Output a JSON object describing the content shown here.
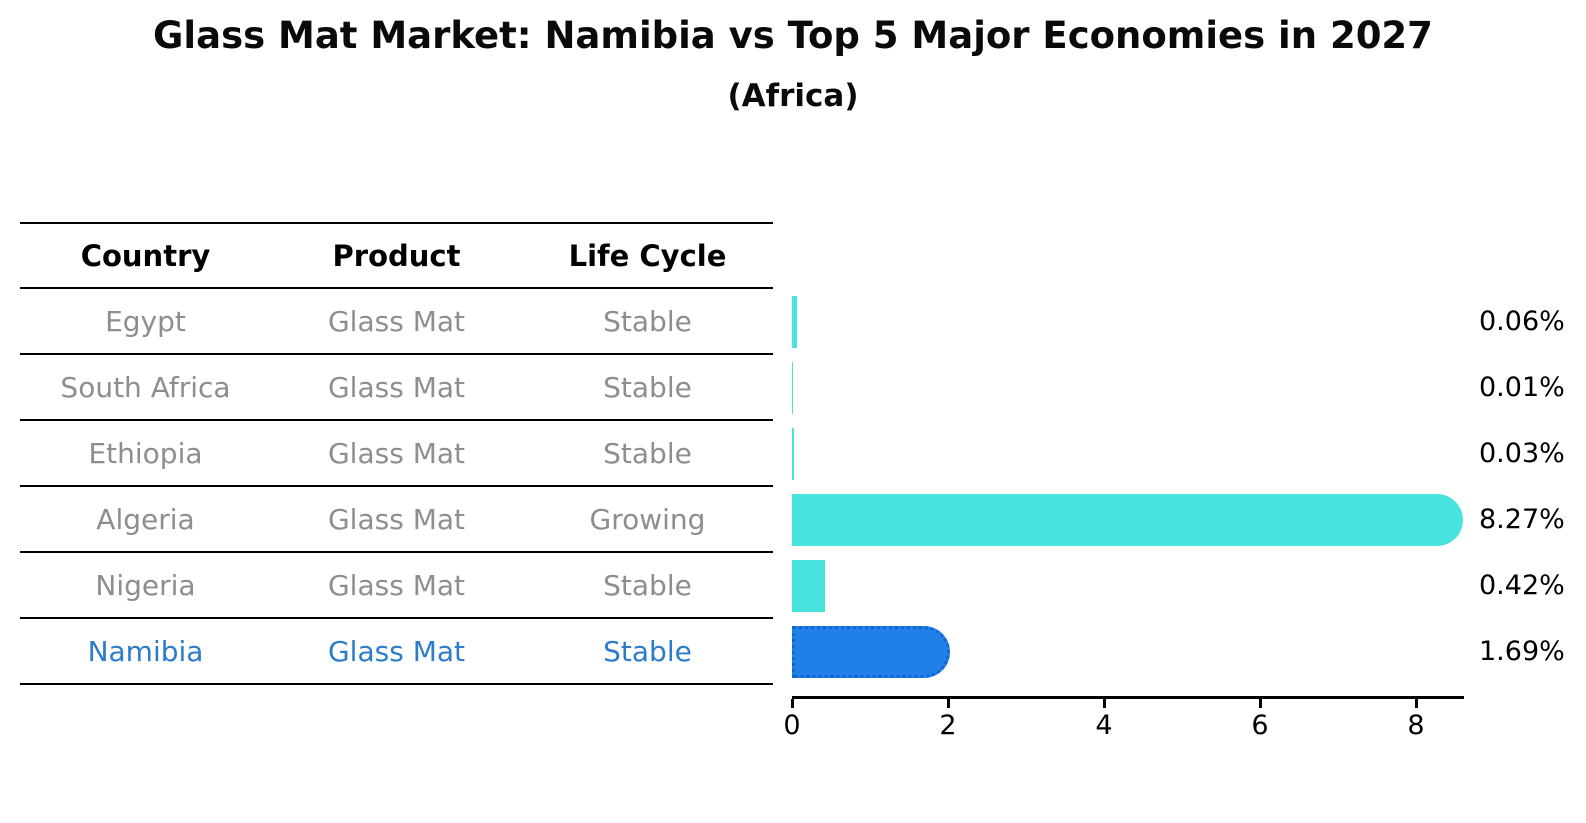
{
  "chart_data": {
    "type": "bar",
    "orientation": "horizontal",
    "title": "Glass Mat Market: Namibia vs Top 5 Major Economies in 2027",
    "subtitle": "(Africa)",
    "table_columns": [
      "Country",
      "Product",
      "Life Cycle"
    ],
    "rows": [
      {
        "country": "Egypt",
        "product": "Glass Mat",
        "life_cycle": "Stable",
        "value": 0.06,
        "value_label": "0.06%",
        "highlight": false
      },
      {
        "country": "South Africa",
        "product": "Glass Mat",
        "life_cycle": "Stable",
        "value": 0.01,
        "value_label": "0.01%",
        "highlight": false
      },
      {
        "country": "Ethiopia",
        "product": "Glass Mat",
        "life_cycle": "Stable",
        "value": 0.03,
        "value_label": "0.03%",
        "highlight": false
      },
      {
        "country": "Algeria",
        "product": "Glass Mat",
        "life_cycle": "Growing",
        "value": 8.27,
        "value_label": "8.27%",
        "highlight": false
      },
      {
        "country": "Nigeria",
        "product": "Glass Mat",
        "life_cycle": "Stable",
        "value": 0.42,
        "value_label": "0.42%",
        "highlight": false
      },
      {
        "country": "Namibia",
        "product": "Glass Mat",
        "life_cycle": "Stable",
        "value": 1.69,
        "value_label": "1.69%",
        "highlight": true
      }
    ],
    "x_axis": {
      "ticks": [
        0,
        2,
        4,
        6,
        8
      ],
      "max": 8.6
    },
    "grid": false,
    "legend": "none",
    "colors": {
      "bar": "#47E4DE",
      "highlight_bar": "#2180E8",
      "highlight_bar_border": "#1266D4",
      "highlight_text": "#2B7CCB",
      "row_text": "#8E8E8E",
      "header_text": "#000000",
      "value_text": "#000000",
      "axis": "#000000"
    }
  }
}
